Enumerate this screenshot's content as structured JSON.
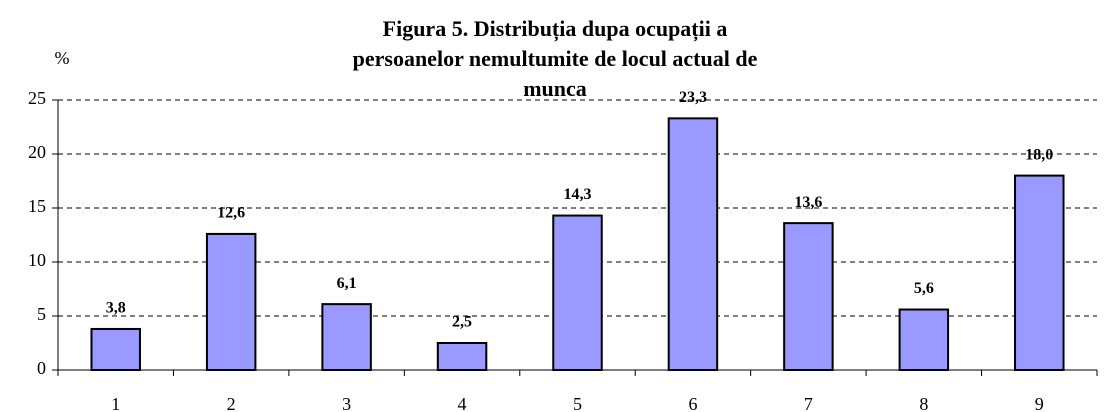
{
  "chart_data": {
    "type": "bar",
    "title": "Figura 5. Distribuția dupa ocupații a persoanelor nemultumite de locul actual de munca",
    "y_label": "%",
    "categories": [
      "1",
      "2",
      "3",
      "4",
      "5",
      "6",
      "7",
      "8",
      "9"
    ],
    "values": [
      3.8,
      12.6,
      6.1,
      2.5,
      14.3,
      23.3,
      13.6,
      5.6,
      18.0
    ],
    "value_labels": [
      "3,8",
      "12,6",
      "6,1",
      "2,5",
      "14,3",
      "23,3",
      "13,6",
      "5,6",
      "18,0"
    ],
    "color": "#9999ff",
    "ylim": [
      0,
      25
    ],
    "yticks": [
      0,
      5,
      10,
      15,
      20,
      25
    ],
    "grid": true
  }
}
